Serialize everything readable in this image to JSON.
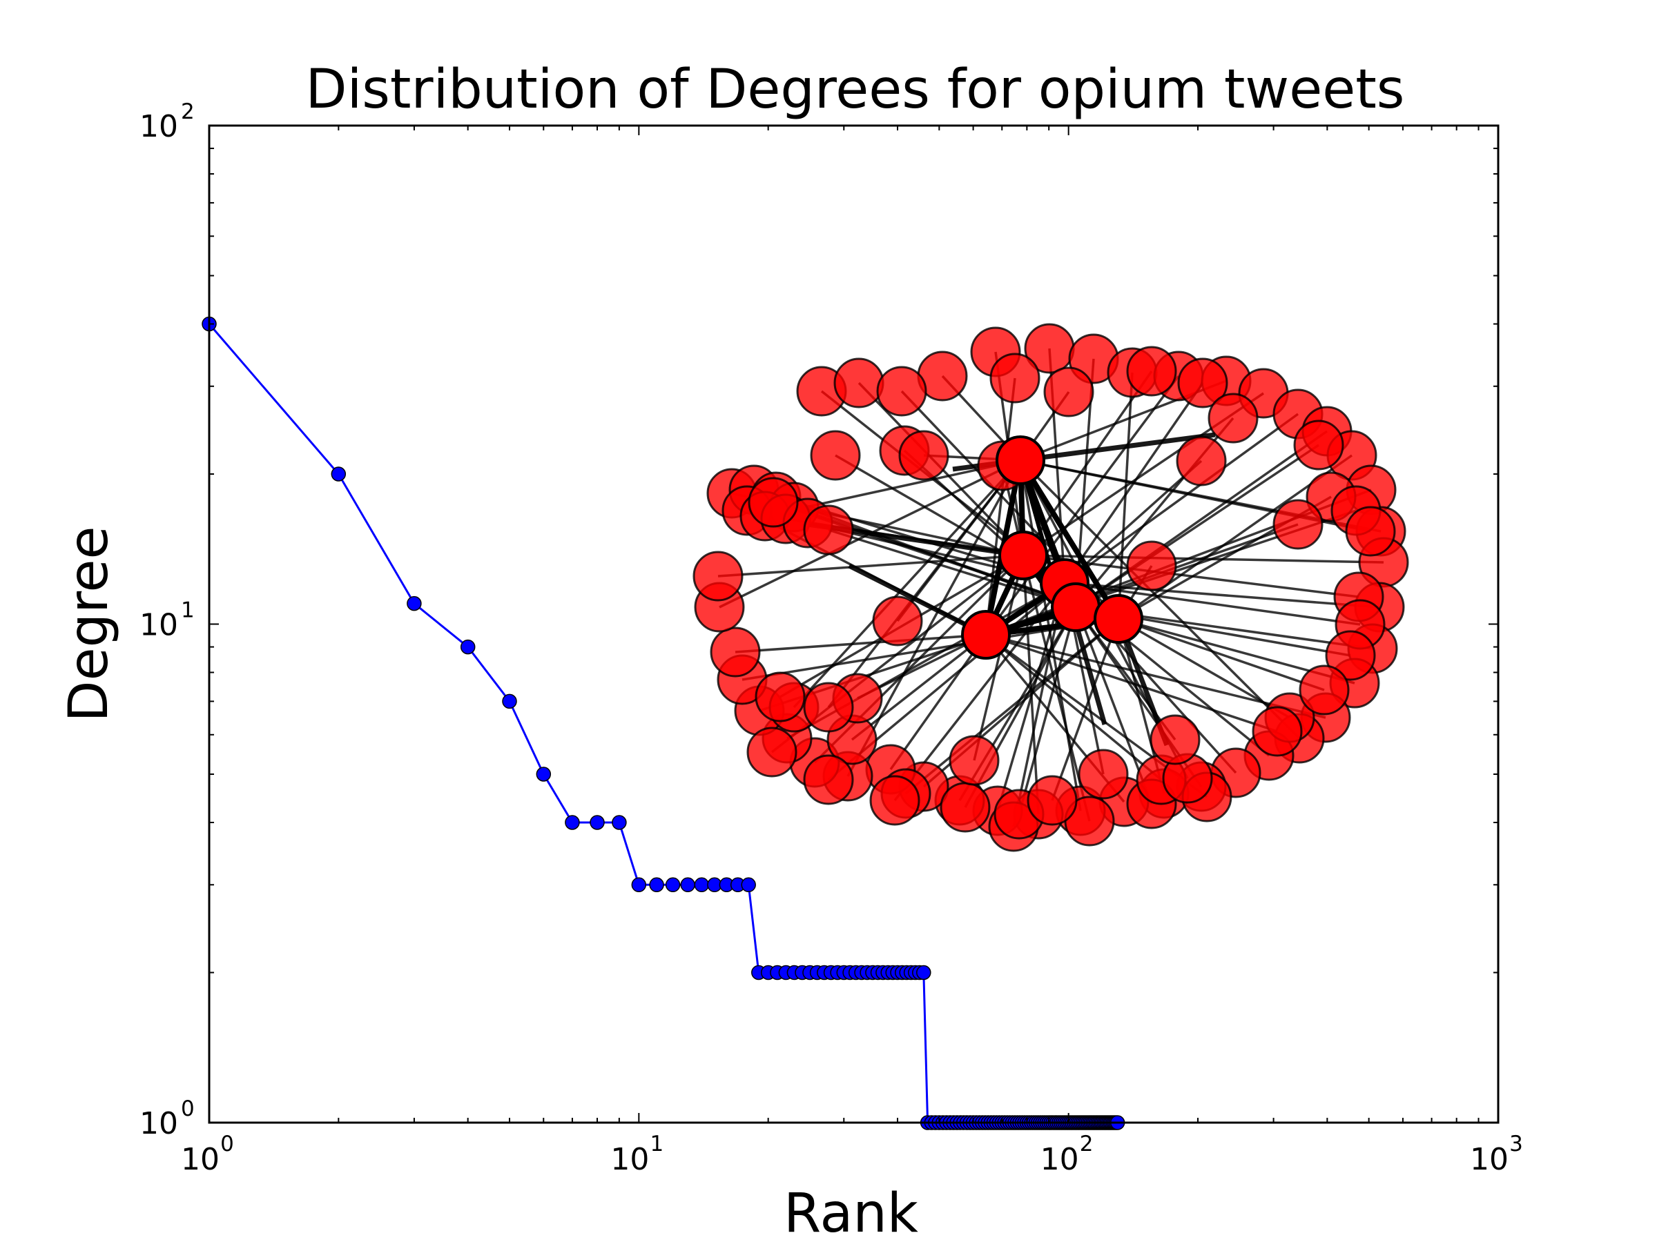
{
  "chart_data": {
    "type": "line",
    "title": "Distribution of Degrees for opium tweets",
    "xlabel": "Rank",
    "ylabel": "Degree",
    "xscale": "log",
    "yscale": "log",
    "xlim": [
      1,
      1000
    ],
    "ylim": [
      1,
      100
    ],
    "grid": false,
    "x_ticks": [
      {
        "base": "10",
        "exp": "0"
      },
      {
        "base": "10",
        "exp": "1"
      },
      {
        "base": "10",
        "exp": "2"
      },
      {
        "base": "10",
        "exp": "3"
      }
    ],
    "y_ticks": [
      {
        "base": "10",
        "exp": "0"
      },
      {
        "base": "10",
        "exp": "1"
      },
      {
        "base": "10",
        "exp": "2"
      }
    ],
    "series": [
      {
        "color": "#0000ff",
        "marker": "circle",
        "runs": [
          {
            "from": 1,
            "to": 1,
            "degree": 40
          },
          {
            "from": 2,
            "to": 2,
            "degree": 20
          },
          {
            "from": 3,
            "to": 3,
            "degree": 11
          },
          {
            "from": 4,
            "to": 4,
            "degree": 9
          },
          {
            "from": 5,
            "to": 5,
            "degree": 7
          },
          {
            "from": 6,
            "to": 6,
            "degree": 5
          },
          {
            "from": 7,
            "to": 9,
            "degree": 4
          },
          {
            "from": 10,
            "to": 18,
            "degree": 3
          },
          {
            "from": 19,
            "to": 46,
            "degree": 2
          },
          {
            "from": 47,
            "to": 130,
            "degree": 1
          }
        ]
      }
    ],
    "inset": {
      "type": "network",
      "node_color": "#ff0000",
      "edge_color": "#000000"
    }
  }
}
